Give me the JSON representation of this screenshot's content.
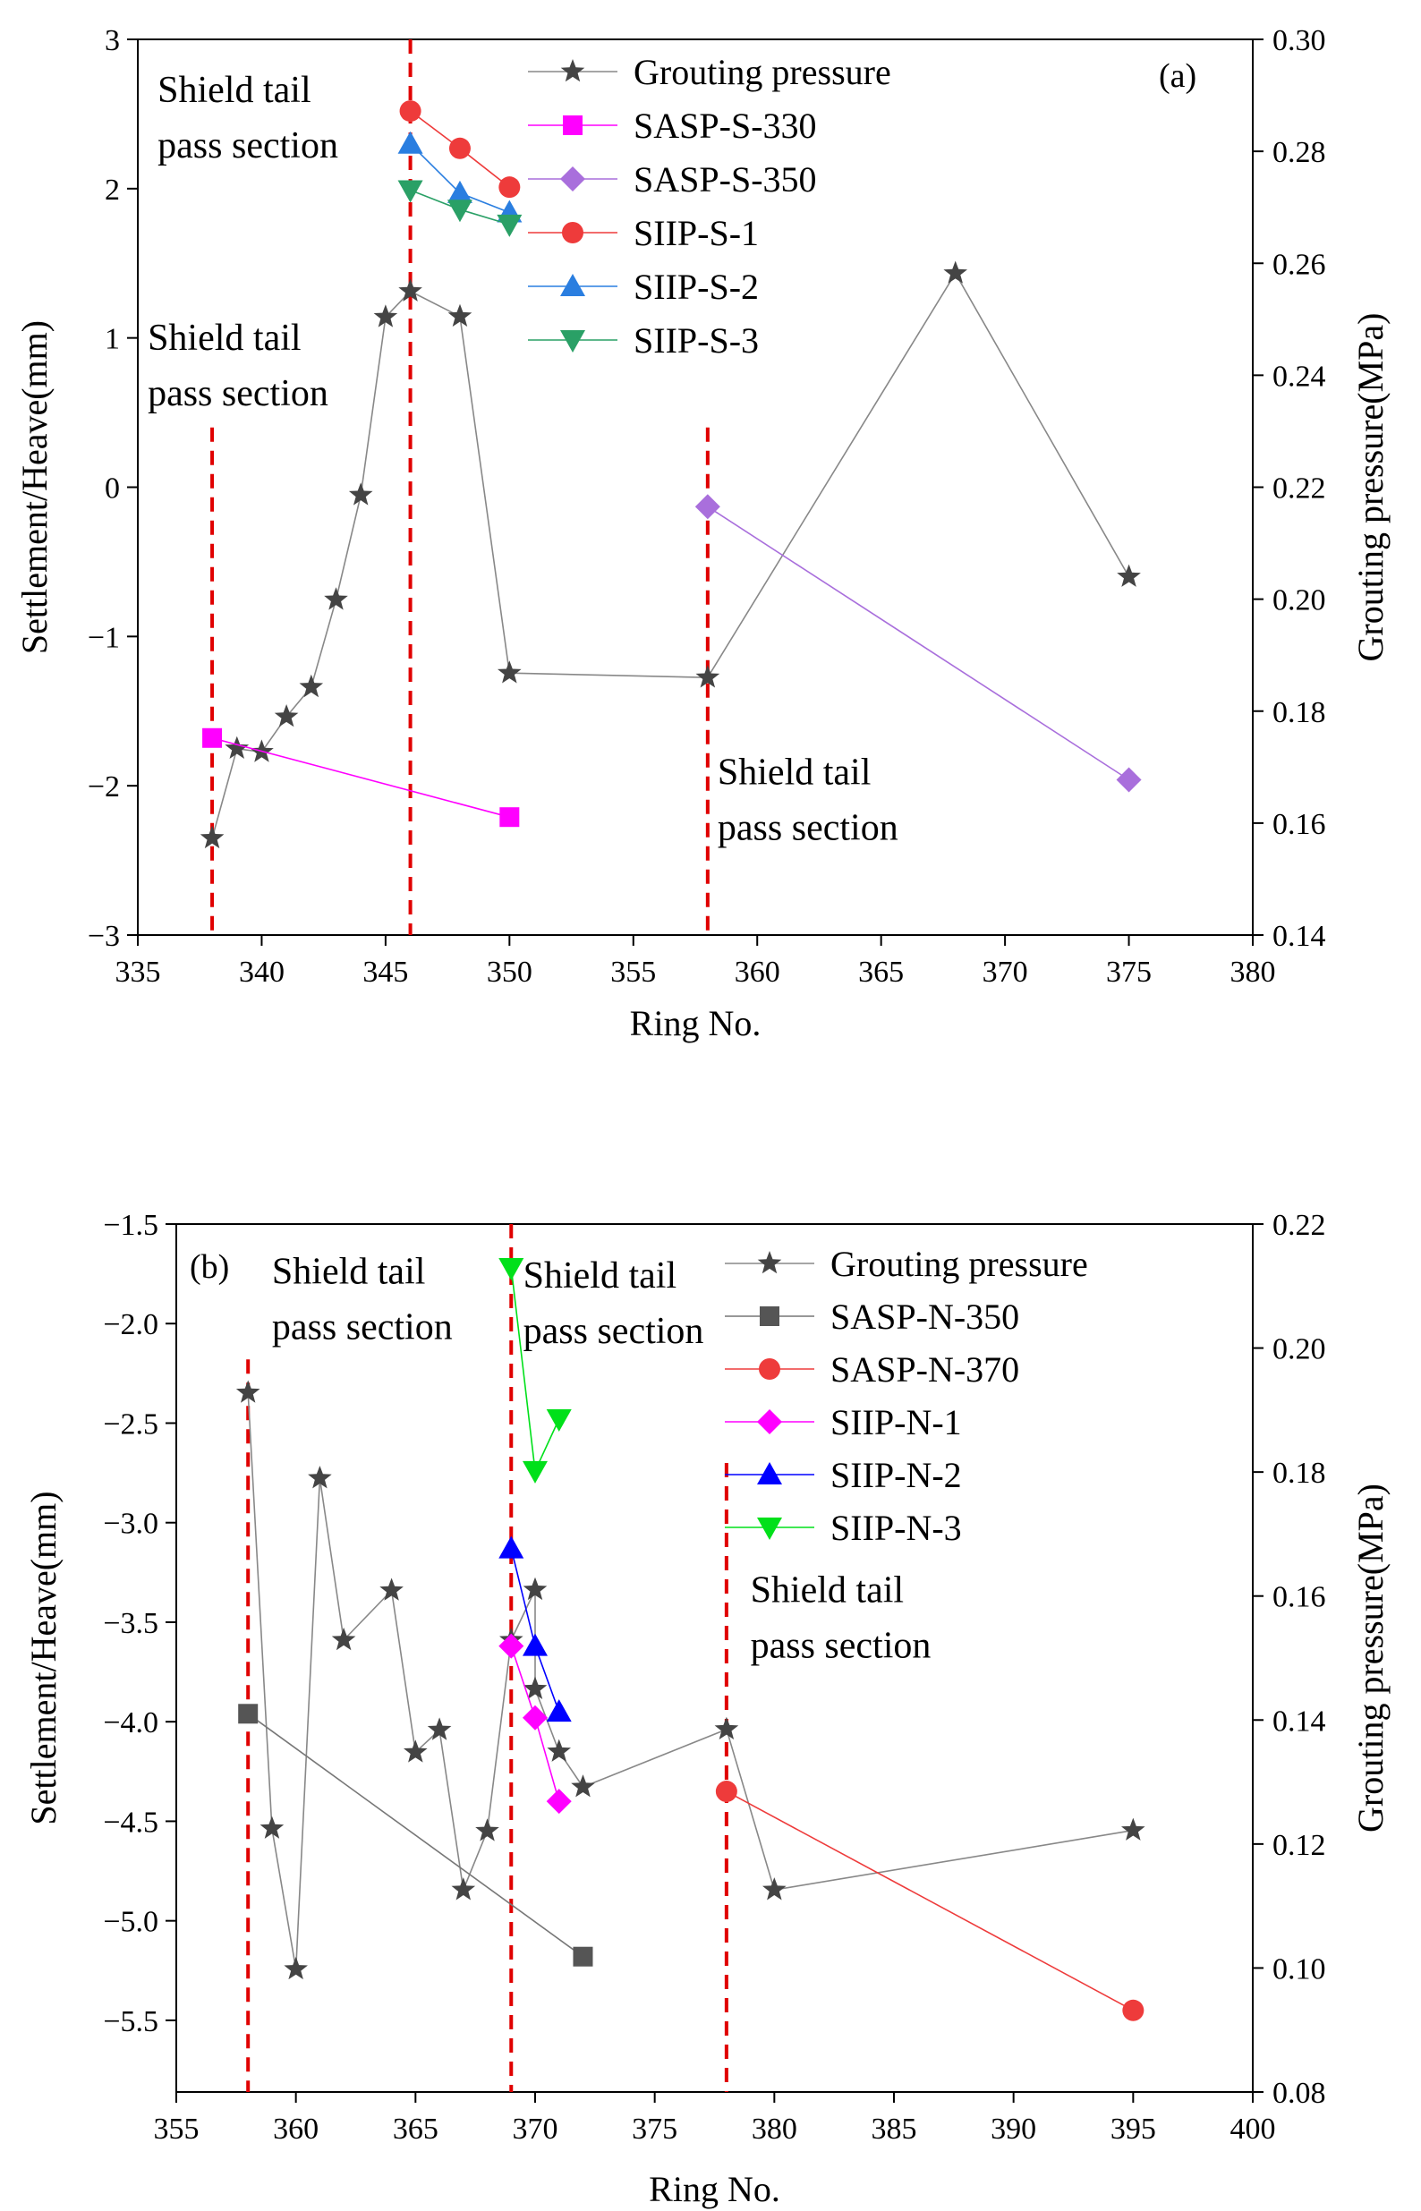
{
  "chart_data": [
    {
      "type": "line",
      "panel_label": "(a)",
      "xlabel": "Ring No.",
      "ylabel_left": "Settlement/Heave(mm)",
      "ylabel_right": "Grouting pressure(MPa)",
      "xlim": [
        335,
        380
      ],
      "ylim_left": [
        -3,
        3
      ],
      "ylim_right": [
        0.14,
        0.3
      ],
      "xticks": [
        "335",
        "340",
        "345",
        "350",
        "355",
        "360",
        "365",
        "370",
        "375",
        "380"
      ],
      "yticks_left": [
        "−3",
        "−2",
        "−1",
        "0",
        "1",
        "2",
        "3"
      ],
      "yticks_right": [
        "0.14",
        "0.16",
        "0.18",
        "0.20",
        "0.22",
        "0.24",
        "0.26",
        "0.28",
        "0.30"
      ],
      "legend": [
        "Grouting pressure",
        "SASP-S-330",
        "SASP-S-350",
        "SIIP-S-1",
        "SIIP-S-2",
        "SIIP-S-3"
      ],
      "vlines": [
        {
          "x": 338,
          "ymin": -3,
          "ymax": 0.4
        },
        {
          "x": 346,
          "ymin": -3,
          "ymax": 3
        },
        {
          "x": 358,
          "ymin": -3,
          "ymax": 0.4
        }
      ],
      "annotations": [
        {
          "lines": [
            "Shield tail",
            "pass section"
          ],
          "x": 335.8,
          "y": 2.58
        },
        {
          "lines": [
            "Shield tail",
            "pass section"
          ],
          "x": 335.4,
          "y": 0.92
        },
        {
          "lines": [
            "Shield tail",
            "pass section"
          ],
          "x": 358.4,
          "y": -1.99
        }
      ],
      "series": [
        {
          "name": "Grouting pressure",
          "axis": "right",
          "marker": "star",
          "color": "#444444",
          "line": "#888888",
          "x": [
            338,
            339,
            340,
            341,
            342,
            343,
            344,
            345,
            346,
            348,
            350,
            358,
            368,
            375
          ],
          "y": [
            0.1573,
            0.1733,
            0.1727,
            0.179,
            0.1843,
            0.1999,
            0.2186,
            0.2504,
            0.255,
            0.2505,
            0.1868,
            0.186,
            0.2582,
            0.204
          ]
        },
        {
          "name": "SASP-S-330",
          "axis": "left",
          "marker": "square",
          "color": "#ff00ff",
          "line": "#ff00ff",
          "x": [
            338,
            350
          ],
          "y": [
            -1.68,
            -2.21
          ]
        },
        {
          "name": "SASP-S-350",
          "axis": "left",
          "marker": "diamond",
          "color": "#a96fdc",
          "line": "#a96fdc",
          "x": [
            358,
            375
          ],
          "y": [
            -0.13,
            -1.96
          ]
        },
        {
          "name": "SIIP-S-1",
          "axis": "left",
          "marker": "circle",
          "color": "#ee3b3b",
          "line": "#ee3b3b",
          "x": [
            346,
            348,
            350
          ],
          "y": [
            2.52,
            2.27,
            2.01
          ]
        },
        {
          "name": "SIIP-S-2",
          "axis": "left",
          "marker": "triangle-up",
          "color": "#2a7ee0",
          "line": "#2a7ee0",
          "x": [
            346,
            348,
            350
          ],
          "y": [
            2.3,
            1.97,
            1.84
          ]
        },
        {
          "name": "SIIP-S-3",
          "axis": "left",
          "marker": "triangle-down",
          "color": "#2aa066",
          "line": "#2aa066",
          "x": [
            346,
            348,
            350
          ],
          "y": [
            1.99,
            1.86,
            1.76
          ]
        }
      ]
    },
    {
      "type": "line",
      "panel_label": "(b)",
      "xlabel": "Ring No.",
      "ylabel_left": "Settlement/Heave(mm)",
      "ylabel_right": "Grouting pressure(MPa)",
      "xlim": [
        355,
        400
      ],
      "ylim_left": [
        -5.86,
        -1.5
      ],
      "ylim_right": [
        0.08,
        0.22
      ],
      "xticks": [
        "355",
        "360",
        "365",
        "370",
        "375",
        "380",
        "385",
        "390",
        "395",
        "400"
      ],
      "yticks_left": [
        "−1.5",
        "−2.0",
        "−2.5",
        "−3.0",
        "−3.5",
        "−4.0",
        "−4.5",
        "−5.0",
        "−5.5"
      ],
      "yticks_right": [
        "0.08",
        "0.10",
        "0.12",
        "0.14",
        "0.16",
        "0.18",
        "0.20",
        "0.22"
      ],
      "legend": [
        "Grouting pressure",
        "SASP-N-350",
        "SASP-N-370",
        "SIIP-N-1",
        "SIIP-N-2",
        "SIIP-N-3"
      ],
      "vlines": [
        {
          "x": 358,
          "ymin": -5.86,
          "ymax": -2.18
        },
        {
          "x": 369,
          "ymin": -5.86,
          "ymax": -1.5
        },
        {
          "x": 378,
          "ymin": -5.86,
          "ymax": -2.7
        }
      ],
      "annotations": [
        {
          "lines": [
            "Shield tail",
            "pass section"
          ],
          "x": 359.0,
          "y": -1.8
        },
        {
          "lines": [
            "Shield tail",
            "pass section"
          ],
          "x": 369.5,
          "y": -1.82
        },
        {
          "lines": [
            "Shield tail",
            "pass section"
          ],
          "x": 379.0,
          "y": -3.4
        }
      ],
      "series": [
        {
          "name": "Grouting pressure",
          "axis": "right",
          "marker": "star",
          "color": "#444444",
          "line": "#888888",
          "x": [
            358,
            359,
            360,
            361,
            362,
            364,
            365,
            366,
            367,
            368,
            369,
            370,
            370,
            371,
            372,
            378,
            380,
            395
          ],
          "y": [
            0.1928,
            0.1225,
            0.0998,
            0.179,
            0.1529,
            0.1609,
            0.1348,
            0.1384,
            0.1126,
            0.1221,
            0.1529,
            0.161,
            0.145,
            0.1349,
            0.1292,
            0.1385,
            0.1126,
            0.1222
          ]
        },
        {
          "name": "SASP-N-350",
          "axis": "left",
          "marker": "square",
          "color": "#555555",
          "line": "#777777",
          "x": [
            358,
            372
          ],
          "y": [
            -3.96,
            -5.18
          ]
        },
        {
          "name": "SASP-N-370",
          "axis": "left",
          "marker": "circle",
          "color": "#ee3b3b",
          "line": "#ee3b3b",
          "x": [
            378,
            395
          ],
          "y": [
            -4.35,
            -5.45
          ]
        },
        {
          "name": "SIIP-N-1",
          "axis": "left",
          "marker": "diamond",
          "color": "#ff00ff",
          "line": "#ff00ff",
          "x": [
            369,
            370,
            371
          ],
          "y": [
            -3.62,
            -3.98,
            -4.4
          ]
        },
        {
          "name": "SIIP-N-2",
          "axis": "left",
          "marker": "triangle-up",
          "color": "#0000ff",
          "line": "#0000ff",
          "x": [
            369,
            370,
            371
          ],
          "y": [
            -3.13,
            -3.62,
            -3.95
          ]
        },
        {
          "name": "SIIP-N-3",
          "axis": "left",
          "marker": "triangle-down",
          "color": "#00e01a",
          "line": "#00e01a",
          "x": [
            369,
            370,
            371
          ],
          "y": [
            -1.72,
            -2.74,
            -2.48
          ]
        }
      ]
    }
  ]
}
